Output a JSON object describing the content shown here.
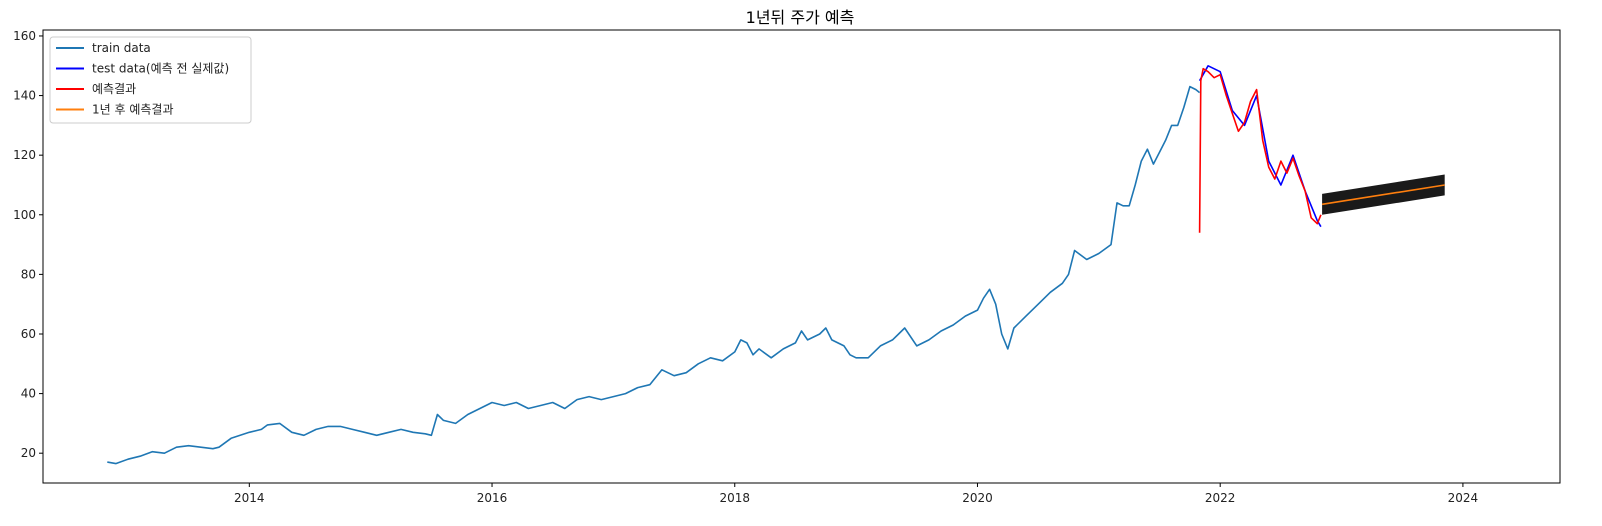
{
  "chart_data": {
    "type": "line",
    "title": "1년뒤 주가 예측",
    "xlabel": "",
    "ylabel": "",
    "xlim": [
      2012.3,
      2024.8
    ],
    "ylim": [
      10,
      162
    ],
    "x_ticks": [
      2014,
      2016,
      2018,
      2020,
      2022,
      2024
    ],
    "x_tick_labels": [
      "2014",
      "2016",
      "2018",
      "2020",
      "2022",
      "2024"
    ],
    "y_ticks": [
      20,
      40,
      60,
      80,
      100,
      120,
      140,
      160
    ],
    "y_tick_labels": [
      "20",
      "40",
      "60",
      "80",
      "100",
      "120",
      "140",
      "160"
    ],
    "grid": false,
    "legend_position": "top-left",
    "colors": {
      "train": "#1f77b4",
      "test": "#0000ff",
      "pred": "#ff0000",
      "forecast": "#ff7f0e",
      "band": "#1a1a1a"
    },
    "series": [
      {
        "name": "train data",
        "color": "#1f77b4",
        "x": [
          2012.83,
          2012.9,
          2013.0,
          2013.1,
          2013.2,
          2013.3,
          2013.4,
          2013.5,
          2013.6,
          2013.7,
          2013.75,
          2013.85,
          2014.0,
          2014.1,
          2014.15,
          2014.25,
          2014.35,
          2014.45,
          2014.55,
          2014.65,
          2014.75,
          2014.85,
          2014.95,
          2015.05,
          2015.15,
          2015.25,
          2015.35,
          2015.45,
          2015.5,
          2015.55,
          2015.6,
          2015.7,
          2015.8,
          2015.9,
          2016.0,
          2016.1,
          2016.2,
          2016.3,
          2016.4,
          2016.5,
          2016.6,
          2016.7,
          2016.8,
          2016.9,
          2017.0,
          2017.1,
          2017.2,
          2017.3,
          2017.4,
          2017.5,
          2017.6,
          2017.7,
          2017.8,
          2017.9,
          2018.0,
          2018.05,
          2018.1,
          2018.15,
          2018.2,
          2018.3,
          2018.4,
          2018.5,
          2018.55,
          2018.6,
          2018.7,
          2018.75,
          2018.8,
          2018.9,
          2018.95,
          2019.0,
          2019.1,
          2019.2,
          2019.3,
          2019.35,
          2019.4,
          2019.5,
          2019.6,
          2019.7,
          2019.8,
          2019.9,
          2020.0,
          2020.05,
          2020.1,
          2020.15,
          2020.2,
          2020.25,
          2020.3,
          2020.4,
          2020.5,
          2020.6,
          2020.7,
          2020.75,
          2020.8,
          2020.9,
          2021.0,
          2021.1,
          2021.15,
          2021.2,
          2021.25,
          2021.3,
          2021.35,
          2021.4,
          2021.45,
          2021.5,
          2021.55,
          2021.6,
          2021.65,
          2021.7,
          2021.75,
          2021.8,
          2021.83
        ],
        "values": [
          17,
          16.5,
          18,
          19,
          20.5,
          20,
          22,
          22.5,
          22,
          21.5,
          22,
          25,
          27,
          28,
          29.5,
          30,
          27,
          26,
          28,
          29,
          29,
          28,
          27,
          26,
          27,
          28,
          27,
          26.5,
          26,
          33,
          31,
          30,
          33,
          35,
          37,
          36,
          37,
          35,
          36,
          37,
          35,
          38,
          39,
          38,
          39,
          40,
          42,
          43,
          48,
          46,
          47,
          50,
          52,
          51,
          54,
          58,
          57,
          53,
          55,
          52,
          55,
          57,
          61,
          58,
          60,
          62,
          58,
          56,
          53,
          52,
          52,
          56,
          58,
          60,
          62,
          56,
          58,
          61,
          63,
          66,
          68,
          72,
          75,
          70,
          60,
          55,
          62,
          66,
          70,
          74,
          77,
          80,
          88,
          85,
          87,
          90,
          104,
          103,
          103,
          110,
          118,
          122,
          117,
          121,
          125,
          130,
          130,
          136,
          143,
          142,
          141
        ]
      },
      {
        "name": "test data(예측 전 실제값)",
        "color": "#0000ff",
        "x": [
          2021.83,
          2021.9,
          2022.0,
          2022.1,
          2022.2,
          2022.3,
          2022.4,
          2022.5,
          2022.6,
          2022.7,
          2022.8,
          2022.83
        ],
        "values": [
          145,
          150,
          148,
          135,
          130,
          140,
          118,
          110,
          120,
          108,
          98,
          96
        ]
      },
      {
        "name": "예측결과",
        "color": "#ff0000",
        "x": [
          2021.83,
          2021.84,
          2021.86,
          2021.9,
          2021.95,
          2022.0,
          2022.05,
          2022.1,
          2022.15,
          2022.2,
          2022.25,
          2022.3,
          2022.35,
          2022.4,
          2022.45,
          2022.5,
          2022.55,
          2022.6,
          2022.65,
          2022.7,
          2022.75,
          2022.8,
          2022.83
        ],
        "values": [
          94,
          145,
          149,
          148,
          146,
          147,
          140,
          134,
          128,
          131,
          138,
          142,
          125,
          116,
          112,
          118,
          114,
          119,
          113,
          108,
          99,
          97,
          100
        ]
      },
      {
        "name": "1년 후 예측결과",
        "color": "#ff7f0e",
        "x": [
          2022.84,
          2023.85
        ],
        "values": [
          103.5,
          110
        ]
      }
    ],
    "confidence_band": {
      "x": [
        2022.84,
        2023.85
      ],
      "upper": [
        107,
        113.5
      ],
      "lower": [
        100,
        106.5
      ]
    }
  }
}
